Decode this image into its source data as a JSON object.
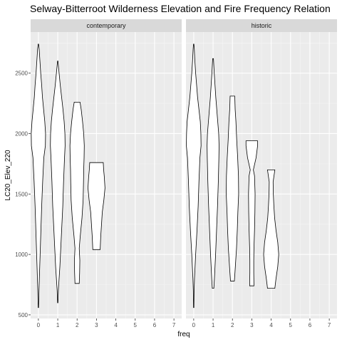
{
  "chart_data": {
    "type": "violin",
    "title": "Selway-Bitterroot Wilderness Elevation and Fire Frequency Relation",
    "xlabel": "freq",
    "ylabel": "LC20_Elev_220",
    "x_ticks": [
      0,
      1,
      2,
      3,
      4,
      5,
      6,
      7
    ],
    "y_ticks": [
      500,
      1000,
      1500,
      2000,
      2500
    ],
    "ylim": [
      470,
      2840
    ],
    "xlim": [
      -0.4,
      7.4
    ],
    "grid": true,
    "facets": [
      {
        "name": "contemporary",
        "violins": [
          {
            "x": 0,
            "min": 560,
            "max": 2740,
            "profile": [
              [
                560,
                0.01
              ],
              [
                700,
                0.03
              ],
              [
                800,
                0.05
              ],
              [
                1000,
                0.09
              ],
              [
                1200,
                0.13
              ],
              [
                1400,
                0.17
              ],
              [
                1600,
                0.22
              ],
              [
                1800,
                0.28
              ],
              [
                1900,
                0.36
              ],
              [
                2000,
                0.37
              ],
              [
                2100,
                0.33
              ],
              [
                2200,
                0.27
              ],
              [
                2300,
                0.21
              ],
              [
                2400,
                0.17
              ],
              [
                2500,
                0.12
              ],
              [
                2600,
                0.08
              ],
              [
                2700,
                0.04
              ],
              [
                2740,
                0.01
              ]
            ]
          },
          {
            "x": 1,
            "min": 600,
            "max": 2600,
            "profile": [
              [
                600,
                0.01
              ],
              [
                700,
                0.03
              ],
              [
                800,
                0.07
              ],
              [
                900,
                0.11
              ],
              [
                1000,
                0.14
              ],
              [
                1200,
                0.2
              ],
              [
                1400,
                0.26
              ],
              [
                1600,
                0.3
              ],
              [
                1800,
                0.35
              ],
              [
                1900,
                0.38
              ],
              [
                2000,
                0.37
              ],
              [
                2100,
                0.33
              ],
              [
                2200,
                0.27
              ],
              [
                2300,
                0.2
              ],
              [
                2400,
                0.13
              ],
              [
                2500,
                0.07
              ],
              [
                2600,
                0.01
              ]
            ]
          },
          {
            "x": 2,
            "min": 760,
            "max": 2260,
            "profile": [
              [
                760,
                0.11
              ],
              [
                850,
                0.13
              ],
              [
                950,
                0.14
              ],
              [
                1050,
                0.11
              ],
              [
                1150,
                0.16
              ],
              [
                1300,
                0.25
              ],
              [
                1450,
                0.31
              ],
              [
                1600,
                0.33
              ],
              [
                1700,
                0.34
              ],
              [
                1800,
                0.36
              ],
              [
                1900,
                0.37
              ],
              [
                2000,
                0.34
              ],
              [
                2100,
                0.28
              ],
              [
                2200,
                0.21
              ],
              [
                2260,
                0.15
              ]
            ]
          },
          {
            "x": 3,
            "min": 1040,
            "max": 1760,
            "profile": [
              [
                1040,
                0.19
              ],
              [
                1150,
                0.22
              ],
              [
                1250,
                0.26
              ],
              [
                1350,
                0.3
              ],
              [
                1450,
                0.38
              ],
              [
                1550,
                0.44
              ],
              [
                1650,
                0.4
              ],
              [
                1700,
                0.37
              ],
              [
                1760,
                0.35
              ]
            ]
          }
        ]
      },
      {
        "name": "historic",
        "violins": [
          {
            "x": 0,
            "min": 560,
            "max": 2740,
            "profile": [
              [
                560,
                0.01
              ],
              [
                700,
                0.02
              ],
              [
                800,
                0.04
              ],
              [
                1000,
                0.1
              ],
              [
                1200,
                0.17
              ],
              [
                1400,
                0.23
              ],
              [
                1600,
                0.27
              ],
              [
                1800,
                0.32
              ],
              [
                1900,
                0.38
              ],
              [
                2000,
                0.37
              ],
              [
                2100,
                0.34
              ],
              [
                2200,
                0.27
              ],
              [
                2300,
                0.2
              ],
              [
                2400,
                0.15
              ],
              [
                2500,
                0.1
              ],
              [
                2600,
                0.06
              ],
              [
                2700,
                0.03
              ],
              [
                2740,
                0.01
              ]
            ]
          },
          {
            "x": 1,
            "min": 720,
            "max": 2620,
            "profile": [
              [
                720,
                0.04
              ],
              [
                800,
                0.07
              ],
              [
                900,
                0.1
              ],
              [
                1000,
                0.13
              ],
              [
                1200,
                0.18
              ],
              [
                1400,
                0.23
              ],
              [
                1600,
                0.27
              ],
              [
                1800,
                0.3
              ],
              [
                1900,
                0.31
              ],
              [
                2000,
                0.29
              ],
              [
                2100,
                0.24
              ],
              [
                2200,
                0.19
              ],
              [
                2300,
                0.14
              ],
              [
                2400,
                0.1
              ],
              [
                2500,
                0.06
              ],
              [
                2620,
                0.02
              ]
            ]
          },
          {
            "x": 2,
            "min": 780,
            "max": 2310,
            "profile": [
              [
                780,
                0.1
              ],
              [
                850,
                0.13
              ],
              [
                950,
                0.17
              ],
              [
                1050,
                0.21
              ],
              [
                1200,
                0.25
              ],
              [
                1350,
                0.28
              ],
              [
                1500,
                0.32
              ],
              [
                1650,
                0.31
              ],
              [
                1800,
                0.27
              ],
              [
                1950,
                0.22
              ],
              [
                2100,
                0.18
              ],
              [
                2200,
                0.14
              ],
              [
                2310,
                0.12
              ]
            ]
          },
          {
            "x": 3,
            "min": 740,
            "max": 1940,
            "profile": [
              [
                740,
                0.11
              ],
              [
                850,
                0.1
              ],
              [
                950,
                0.1
              ],
              [
                1050,
                0.11
              ],
              [
                1200,
                0.14
              ],
              [
                1350,
                0.16
              ],
              [
                1500,
                0.17
              ],
              [
                1650,
                0.14
              ],
              [
                1700,
                0.08
              ],
              [
                1800,
                0.22
              ],
              [
                1900,
                0.3
              ],
              [
                1940,
                0.3
              ]
            ]
          },
          {
            "x": 4,
            "min": 720,
            "max": 1700,
            "profile": [
              [
                720,
                0.19
              ],
              [
                800,
                0.25
              ],
              [
                900,
                0.34
              ],
              [
                1000,
                0.39
              ],
              [
                1100,
                0.34
              ],
              [
                1200,
                0.25
              ],
              [
                1300,
                0.18
              ],
              [
                1400,
                0.14
              ],
              [
                1500,
                0.11
              ],
              [
                1600,
                0.1
              ],
              [
                1700,
                0.19
              ]
            ]
          }
        ]
      }
    ]
  }
}
